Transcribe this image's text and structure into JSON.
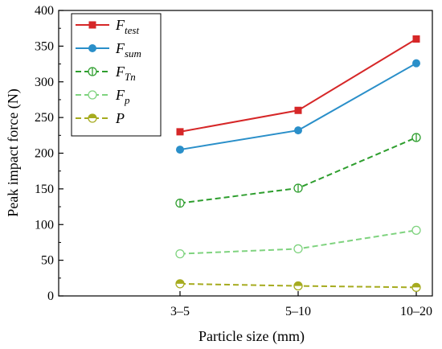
{
  "chart_data": {
    "type": "line",
    "categories": [
      "3–5",
      "5–10",
      "10–20"
    ],
    "xlabel": "Particle size (mm)",
    "ylabel": "Peak impact force (N)",
    "ylim": [
      0,
      400
    ],
    "yticks": [
      "0",
      "50",
      "100",
      "150",
      "200",
      "250",
      "300",
      "350",
      "400"
    ],
    "grid": false,
    "legend_position": "top-left",
    "series": [
      {
        "name": "F",
        "sub": "test",
        "values": [
          230,
          260,
          360
        ],
        "color": "#d62728",
        "marker": "square",
        "dash": "solid"
      },
      {
        "name": "F",
        "sub": "sum",
        "values": [
          205,
          232,
          326
        ],
        "color": "#2a8fc9",
        "marker": "circle",
        "dash": "solid"
      },
      {
        "name": "F",
        "sub": "Tn",
        "values": [
          130,
          151,
          222
        ],
        "color": "#2e9e2e",
        "marker": "circle-open-bar",
        "dash": "dashed"
      },
      {
        "name": "F",
        "sub": "p",
        "values": [
          59,
          66,
          92
        ],
        "color": "#7fd37f",
        "marker": "circle-open",
        "dash": "dashed"
      },
      {
        "name": "P",
        "sub": "",
        "values": [
          17,
          14,
          12
        ],
        "color": "#a6ab1f",
        "marker": "circle-half",
        "dash": "dashed"
      }
    ]
  }
}
